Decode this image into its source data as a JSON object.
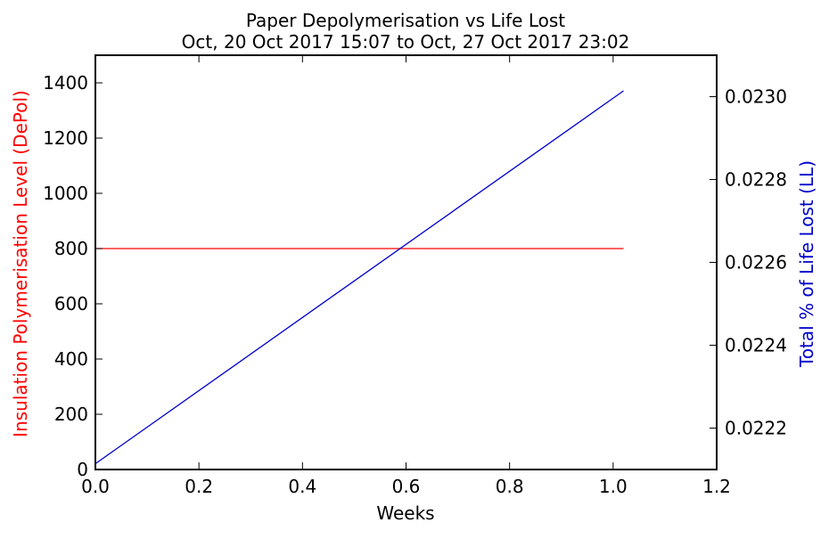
{
  "chart_data": {
    "type": "line",
    "title": "Paper Depolymerisation vs Life Lost",
    "subtitle": "Oct, 20 Oct 2017 15:07 to Oct, 27 Oct 2017 23:02",
    "xlabel": "Weeks",
    "ylabel_left": "Insulation Polymerisation Level (DePol)",
    "ylabel_right": "Total % of Life Lost (LL)",
    "xlim": [
      0,
      1.2
    ],
    "ylim_left": [
      0,
      1500
    ],
    "ylim_right": [
      0.0221,
      0.0231
    ],
    "x_ticks": [
      "0.0",
      "0.2",
      "0.4",
      "0.6",
      "0.8",
      "1.0",
      "1.2"
    ],
    "y_left_ticks": [
      "0",
      "200",
      "400",
      "600",
      "800",
      "1000",
      "1200",
      "1400"
    ],
    "y_right_ticks": [
      "0.0222",
      "0.0224",
      "0.0226",
      "0.0228",
      "0.0230"
    ],
    "grid": false,
    "series": [
      {
        "axis": "left",
        "color": "#ff0000",
        "x": [
          0.0,
          1.02
        ],
        "y": [
          800,
          800
        ]
      },
      {
        "axis": "right",
        "color": "#0000cc",
        "x": [
          0.0,
          1.02
        ],
        "y": [
          0.022114,
          0.023014
        ]
      }
    ],
    "colors": {
      "left_axis_label": "#ff0000",
      "right_axis_label": "#0000cc",
      "frame": "#000000"
    }
  }
}
